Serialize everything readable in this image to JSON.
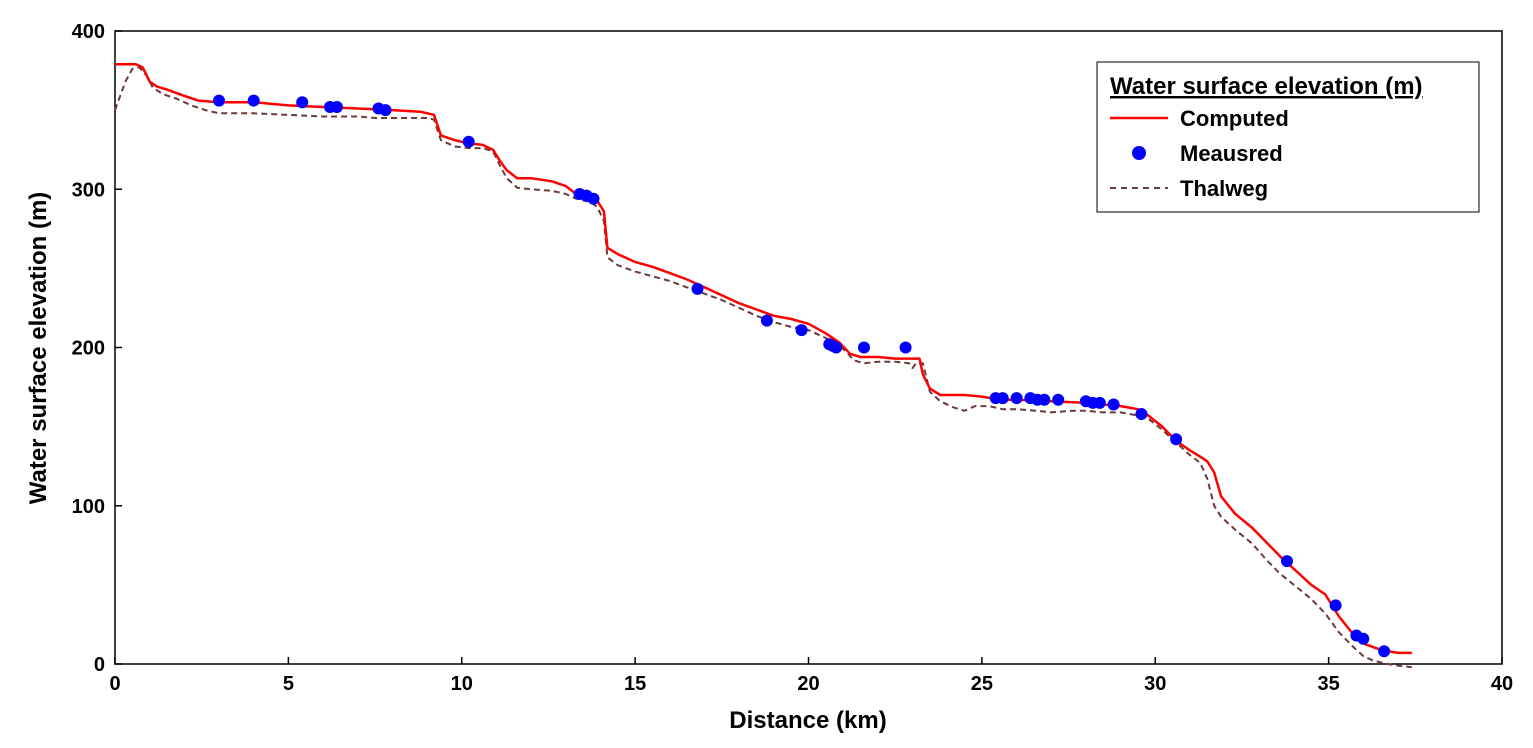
{
  "chart_data": {
    "type": "line",
    "title": "",
    "xlabel": "Distance (km)",
    "ylabel": "Water surface elevation (m)",
    "xlim": [
      0,
      40
    ],
    "ylim": [
      0,
      400
    ],
    "xticks": [
      0,
      5,
      10,
      15,
      20,
      25,
      30,
      35,
      40
    ],
    "yticks": [
      0,
      100,
      200,
      300,
      400
    ],
    "grid": false,
    "legend": {
      "title": "Water surface elevation (m)",
      "placement": "top-right",
      "entries": [
        "Computed",
        "Meausred",
        "Thalweg"
      ]
    },
    "colors": {
      "computed": "#ff0000",
      "measured": "#0000ff",
      "thalweg": "#6b3a3a"
    },
    "series": [
      {
        "name": "Computed",
        "style": "solid-line",
        "x": [
          0,
          0.6,
          0.8,
          1.0,
          1.2,
          1.5,
          2.0,
          2.4,
          3.0,
          4.0,
          5.0,
          6.0,
          7.0,
          8.0,
          8.8,
          9.2,
          9.4,
          9.8,
          10.2,
          10.6,
          10.9,
          11.1,
          11.3,
          11.6,
          12.0,
          12.6,
          13.0,
          13.3,
          13.6,
          13.9,
          14.1,
          14.2,
          14.5,
          15.0,
          15.5,
          16.0,
          16.5,
          17.0,
          17.5,
          18.0,
          18.5,
          19.0,
          19.5,
          20.0,
          20.5,
          20.9,
          21.2,
          21.5,
          22.0,
          22.5,
          23.0,
          23.2,
          23.3,
          23.5,
          23.8,
          24.5,
          25.0,
          25.5,
          26.0,
          27.0,
          28.0,
          29.0,
          29.5,
          29.8,
          30.2,
          30.6,
          31.0,
          31.3,
          31.5,
          31.7,
          31.9,
          32.3,
          32.8,
          33.2,
          33.6,
          34.0,
          34.5,
          34.9,
          35.3,
          35.7,
          36.0,
          36.5,
          37.0,
          37.4
        ],
        "y": [
          379,
          379,
          377,
          368,
          365,
          363,
          359,
          356,
          355,
          355,
          353,
          352,
          351,
          350,
          349,
          347,
          334,
          331,
          329,
          328,
          325,
          318,
          312,
          307,
          307,
          305,
          302,
          297,
          296,
          293,
          286,
          263,
          259,
          254,
          251,
          247,
          243,
          238,
          233,
          228,
          224,
          220,
          218,
          215,
          209,
          203,
          196,
          194,
          194,
          193,
          193,
          193,
          183,
          174,
          170,
          170,
          169,
          167,
          167,
          166,
          165,
          163,
          161,
          157,
          150,
          141,
          135,
          131,
          128,
          121,
          106,
          95,
          86,
          77,
          68,
          60,
          50,
          44,
          30,
          19,
          13,
          9,
          7,
          7
        ]
      },
      {
        "name": "Meausred",
        "style": "markers",
        "x": [
          3.0,
          4.0,
          5.4,
          6.2,
          6.4,
          7.6,
          7.8,
          10.2,
          13.4,
          13.6,
          13.8,
          16.8,
          18.8,
          19.8,
          20.6,
          20.7,
          20.8,
          21.6,
          22.8,
          25.4,
          25.6,
          26.0,
          26.4,
          26.6,
          26.8,
          27.2,
          28.0,
          28.2,
          28.4,
          28.8,
          29.6,
          30.6,
          33.8,
          35.2,
          35.8,
          36.0,
          36.6
        ],
        "y": [
          356,
          356,
          355,
          352,
          352,
          351,
          350,
          330,
          297,
          296,
          294,
          237,
          217,
          211,
          202,
          201,
          200,
          200,
          200,
          168,
          168,
          168,
          168,
          167,
          167,
          167,
          166,
          165,
          165,
          164,
          158,
          142,
          65,
          37,
          18,
          16,
          8
        ]
      },
      {
        "name": "Thalweg",
        "style": "dashed-line",
        "x": [
          0,
          0.3,
          0.5,
          0.7,
          0.9,
          1.1,
          1.4,
          1.8,
          2.2,
          2.6,
          3.0,
          3.5,
          4.0,
          5.0,
          6.0,
          7.0,
          7.5,
          8.0,
          9.0,
          9.2,
          9.4,
          9.8,
          10.2,
          10.6,
          10.9,
          11.1,
          11.3,
          11.6,
          12.0,
          12.6,
          13.0,
          13.3,
          13.7,
          13.9,
          14.1,
          14.2,
          14.5,
          15.0,
          15.5,
          16.0,
          16.5,
          17.0,
          17.5,
          18.0,
          18.5,
          19.0,
          19.5,
          20.0,
          20.5,
          20.9,
          21.1,
          21.3,
          21.6,
          22.0,
          22.5,
          22.9,
          23.0,
          23.1,
          23.3,
          23.5,
          23.8,
          24.2,
          24.5,
          24.8,
          25.2,
          25.6,
          26.0,
          26.6,
          27.0,
          27.6,
          28.0,
          28.5,
          29.0,
          29.5,
          29.8,
          30.2,
          30.6,
          31.0,
          31.3,
          31.5,
          31.7,
          31.9,
          32.3,
          32.8,
          33.2,
          33.6,
          34.0,
          34.5,
          34.9,
          35.3,
          35.7,
          36.0,
          36.3,
          36.7,
          37.0,
          37.4
        ],
        "y": [
          350,
          368,
          376,
          377,
          372,
          364,
          360,
          357,
          353,
          350,
          348,
          348,
          348,
          347,
          346,
          346,
          345,
          345,
          345,
          344,
          331,
          327,
          326,
          326,
          324,
          315,
          307,
          301,
          300,
          299,
          297,
          294,
          292,
          289,
          280,
          257,
          252,
          248,
          245,
          242,
          238,
          234,
          230,
          225,
          220,
          216,
          213,
          211,
          206,
          201,
          197,
          192,
          190,
          191,
          191,
          190,
          187,
          190,
          190,
          172,
          166,
          162,
          160,
          163,
          163,
          161,
          161,
          160,
          159,
          160,
          160,
          159,
          159,
          157,
          155,
          148,
          140,
          132,
          127,
          117,
          100,
          93,
          85,
          76,
          66,
          57,
          50,
          41,
          32,
          20,
          11,
          5,
          2,
          0,
          -1,
          -2
        ]
      }
    ]
  }
}
